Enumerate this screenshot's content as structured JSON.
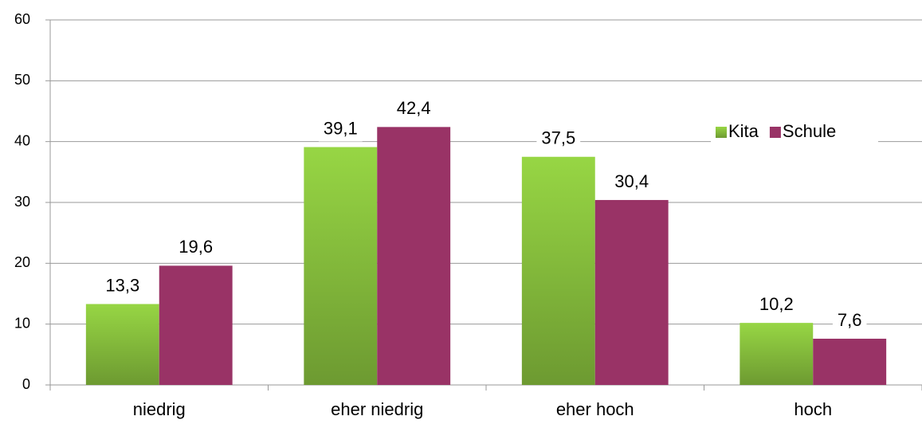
{
  "chart_data": {
    "type": "bar",
    "categories": [
      "niedrig",
      "eher niedrig",
      "eher hoch",
      "hoch"
    ],
    "series": [
      {
        "name": "Kita",
        "color": "#8cc63f",
        "values": [
          13.3,
          39.1,
          37.5,
          10.2
        ],
        "value_labels": [
          "13,3",
          "39,1",
          "37,5",
          "10,2"
        ]
      },
      {
        "name": "Schule",
        "color": "#993366",
        "values": [
          19.6,
          42.4,
          30.4,
          7.6
        ],
        "value_labels": [
          "19,6",
          "42,4",
          "30,4",
          "7,6"
        ]
      }
    ],
    "ylim": [
      0,
      60
    ],
    "yticks": [
      0,
      10,
      20,
      30,
      40,
      50,
      60
    ],
    "grid": true,
    "legend": "upper right"
  }
}
